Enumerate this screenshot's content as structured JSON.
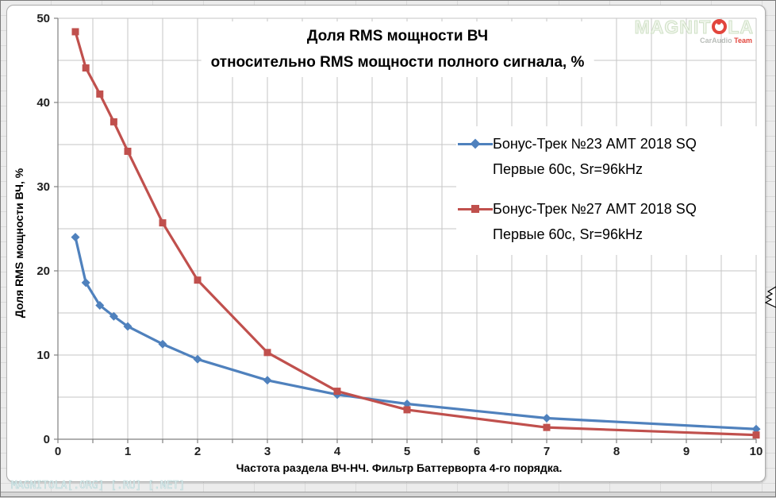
{
  "chart_data": {
    "type": "line",
    "title": "Доля RMS мощности ВЧ относительно RMS мощности полного сигнала, %",
    "title_lines": [
      "Доля RMS мощности ВЧ",
      "относительно RMS мощности полного сигнала, %"
    ],
    "xlabel": "Частота раздела ВЧ-НЧ. Фильтр Баттерворта 4-го порядка.",
    "ylabel": "Доля RMS мощности ВЧ, %",
    "x": [
      0.25,
      0.4,
      0.6,
      0.8,
      1,
      1.5,
      2,
      3,
      4,
      5,
      7,
      10
    ],
    "series": [
      {
        "name": "Бонус-Трек №23 АМТ 2018 SQ Первые 60с, Sr=96kHz",
        "legend_lines": [
          "Бонус-Трек №23 АМТ 2018 SQ",
          "Первые 60с, Sr=96kHz"
        ],
        "color": "#4F81BD",
        "marker": "diamond",
        "values": [
          24.0,
          18.6,
          15.9,
          14.6,
          13.4,
          11.3,
          9.5,
          7.0,
          5.3,
          4.2,
          2.5,
          1.2
        ]
      },
      {
        "name": "Бонус-Трек №27 АМТ 2018 SQ Первые 60с, Sr=96kHz",
        "legend_lines": [
          "Бонус-Трек №27 АМТ 2018 SQ",
          "Первые 60с, Sr=96kHz"
        ],
        "color": "#C0504D",
        "marker": "square",
        "values": [
          48.4,
          44.1,
          41.0,
          37.7,
          34.2,
          25.7,
          18.9,
          10.3,
          5.7,
          3.5,
          1.4,
          0.5
        ]
      }
    ],
    "xlim": [
      0,
      10
    ],
    "ylim": [
      0,
      50
    ],
    "x_ticks": [
      0,
      1,
      2,
      3,
      4,
      5,
      6,
      7,
      8,
      9,
      10
    ],
    "y_ticks": [
      0,
      10,
      20,
      30,
      40,
      50
    ],
    "x_minor_step": 0.5,
    "y_minor_step": 5,
    "grid": true,
    "legend_position": "inside-right",
    "colors": {
      "gridline": "#C6C6C6",
      "axis": "#808080",
      "tick_text": "#1F1F1F"
    }
  },
  "watermarks": {
    "brand_left": "MAGNIT",
    "brand_right": "LA",
    "sub_grey": "CarAudio",
    "sub_red": "Team",
    "bottom": "MAGNITOLA[.ORG] [.RU] [.NET]"
  }
}
